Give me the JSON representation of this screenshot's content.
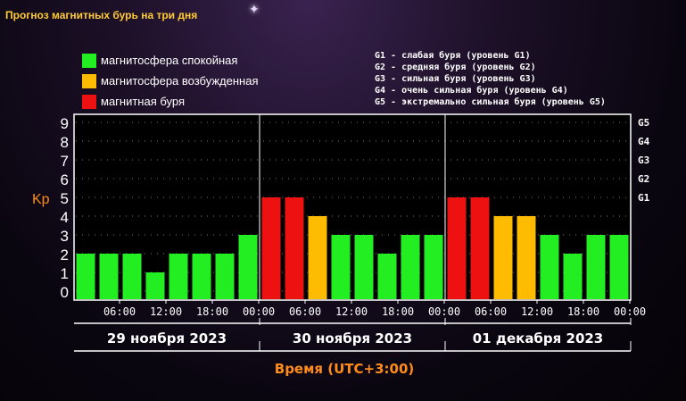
{
  "page": {
    "title": "Прогноз магнитных бурь на три дня"
  },
  "legend": {
    "items": [
      {
        "label": "магнитосфера спокойная",
        "color": "#22ee22"
      },
      {
        "label": "магнитосфера возбужденная",
        "color": "#ffbb00"
      },
      {
        "label": "магнитная буря",
        "color": "#ee1111"
      }
    ],
    "g_levels": [
      "G1 - слабая буря (уровень G1)",
      "G2 - средняя буря (уровень G2)",
      "G3 - сильная буря (уровень G3)",
      "G4 - очень сильная буря (уровень G4)",
      "G5 - экстремально сильная буря (уровень G5)"
    ]
  },
  "colors": {
    "quiet": "#22ee22",
    "active": "#ffbb00",
    "storm": "#ee1111",
    "accent_orange": "#ff8c1a",
    "grid_dot": "#777777"
  },
  "chart_data": {
    "type": "bar",
    "title": "Прогноз магнитных бурь на три дня",
    "ylabel": "Kp",
    "xlabel": "Время (UTC+3:00)",
    "ylim": [
      0,
      9
    ],
    "yticks": [
      "0",
      "1",
      "2",
      "3",
      "4",
      "5",
      "6",
      "7",
      "8",
      "9"
    ],
    "right_ticks": [
      {
        "kp": 5,
        "label": "G1"
      },
      {
        "kp": 6,
        "label": "G2"
      },
      {
        "kp": 7,
        "label": "G3"
      },
      {
        "kp": 8,
        "label": "G4"
      },
      {
        "kp": 9,
        "label": "G5"
      }
    ],
    "time_ticks": [
      "06:00",
      "12:00",
      "18:00",
      "00:00",
      "06:00",
      "12:00",
      "18:00",
      "00:00",
      "06:00",
      "12:00",
      "18:00",
      "00:00"
    ],
    "days": [
      "29 ноября 2023",
      "30 ноября 2023",
      "01 декабря 2023"
    ],
    "values": [
      2,
      2,
      2,
      1,
      2,
      2,
      2,
      3,
      5,
      5,
      4,
      3,
      3,
      2,
      3,
      3,
      5,
      5,
      4,
      4,
      3,
      2,
      3,
      3
    ],
    "levels": [
      "quiet",
      "quiet",
      "quiet",
      "quiet",
      "quiet",
      "quiet",
      "quiet",
      "quiet",
      "storm",
      "storm",
      "active",
      "quiet",
      "quiet",
      "quiet",
      "quiet",
      "quiet",
      "storm",
      "storm",
      "active",
      "active",
      "quiet",
      "quiet",
      "quiet",
      "quiet"
    ],
    "grid": true,
    "legend_position": "top-left"
  }
}
